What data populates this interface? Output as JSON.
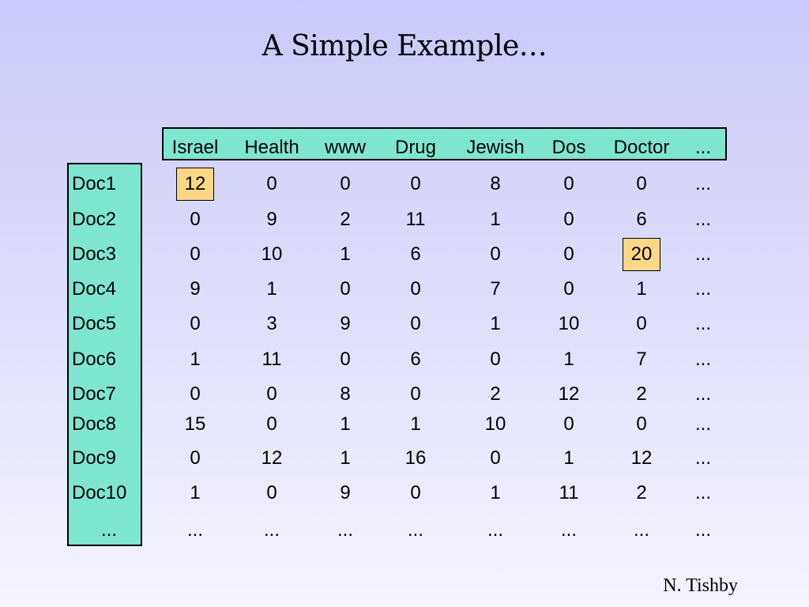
{
  "title": "A Simple Example…",
  "columns": [
    "Israel",
    "Health",
    "www",
    "Drug",
    "Jewish",
    "Dos",
    "Doctor",
    "..."
  ],
  "rows": [
    {
      "label": "Doc1",
      "values": [
        "12",
        "0",
        "0",
        "0",
        "8",
        "0",
        "0",
        "..."
      ]
    },
    {
      "label": "Doc2",
      "values": [
        "0",
        "9",
        "2",
        "11",
        "1",
        "0",
        "6",
        "..."
      ]
    },
    {
      "label": "Doc3",
      "values": [
        "0",
        "10",
        "1",
        "6",
        "0",
        "0",
        "20",
        "..."
      ]
    },
    {
      "label": "Doc4",
      "values": [
        "9",
        "1",
        "0",
        "0",
        "7",
        "0",
        "1",
        "..."
      ]
    },
    {
      "label": "Doc5",
      "values": [
        "0",
        "3",
        "9",
        "0",
        "1",
        "10",
        "0",
        "..."
      ]
    },
    {
      "label": "Doc6",
      "values": [
        "1",
        "11",
        "0",
        "6",
        "0",
        "1",
        "7",
        "..."
      ]
    },
    {
      "label": "Doc7",
      "values": [
        "0",
        "0",
        "8",
        "0",
        "2",
        "12",
        "2",
        "..."
      ]
    },
    {
      "label": "Doc8",
      "values": [
        "15",
        "0",
        "1",
        "1",
        "10",
        "0",
        "0",
        "..."
      ]
    },
    {
      "label": "Doc9",
      "values": [
        "0",
        "12",
        "1",
        "16",
        "0",
        "1",
        "12",
        "..."
      ]
    },
    {
      "label": "Doc10",
      "values": [
        "1",
        "0",
        "9",
        "0",
        "1",
        "11",
        "2",
        "..."
      ]
    },
    {
      "label": "...",
      "values": [
        "...",
        "...",
        "...",
        "...",
        "...",
        "...",
        "...",
        "..."
      ]
    }
  ],
  "highlighted_cells": [
    {
      "row": "Doc1",
      "column": "Israel"
    },
    {
      "row": "Doc3",
      "column": "Doctor"
    }
  ],
  "colors": {
    "label_box": "#7ee6cf",
    "highlight": "#fcd886"
  },
  "author": "N. Tishby"
}
